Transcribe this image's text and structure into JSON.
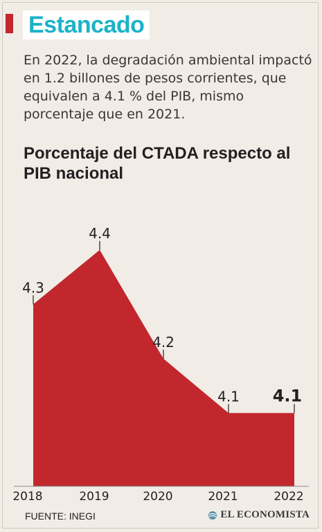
{
  "header": {
    "title": "Estancado",
    "description": "En 2022, la degradación ambiental impactó en 1.2 billones de pesos corrientes, que equivalen a 4.1 % del PIB, mismo porcentaje que en 2021."
  },
  "chart_data": {
    "type": "area",
    "title": "Porcentaje del CTADA respecto al PIB nacional",
    "categories": [
      "2018",
      "2019",
      "2020",
      "2021",
      "2022"
    ],
    "values": [
      4.3,
      4.4,
      4.2,
      4.1,
      4.1
    ],
    "data_labels": [
      "4.3",
      "4.4",
      "4.2",
      "4.1",
      "4.1"
    ],
    "highlight_last": true,
    "grid": false,
    "legend": "none",
    "fill_color": "#c1272d"
  },
  "footer": {
    "source": "FUENTE: INEGI",
    "brand": "EL ECONOMISTA"
  },
  "colors": {
    "background": "#f1ece6",
    "accent_title": "#1bb3c7",
    "accent_bar": "#c1272d"
  }
}
